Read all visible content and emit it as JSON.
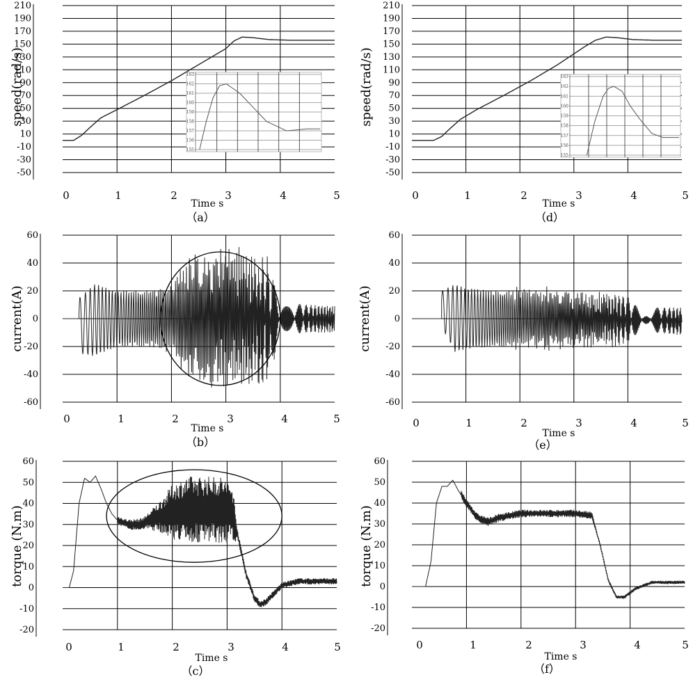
{
  "chart_data": [
    {
      "id": "a",
      "type": "line",
      "caption": "（a）",
      "ylabel": "speed(rad/s)",
      "xlabel": "Time s",
      "xlim": [
        0,
        5
      ],
      "ylim": [
        -50,
        210
      ],
      "yticks": [
        -50,
        -30,
        -10,
        10,
        30,
        50,
        70,
        90,
        110,
        130,
        150,
        170,
        190,
        210
      ],
      "xticks": [
        0,
        1,
        2,
        3,
        4,
        5
      ],
      "grid": true,
      "series": [
        {
          "x": [
            0,
            0.2,
            0.35,
            0.5,
            0.7,
            1.0,
            1.5,
            2.0,
            2.5,
            3.0,
            3.15,
            3.3,
            3.5,
            3.8,
            4.2,
            5.0
          ],
          "values": [
            0,
            0,
            8,
            20,
            35,
            48,
            70,
            93,
            118,
            143,
            155,
            161,
            160,
            157,
            156,
            156
          ]
        }
      ],
      "inset": {
        "ylim": [
          155,
          163
        ],
        "yticks": [
          155,
          156,
          157,
          158,
          159,
          160,
          161,
          162,
          163
        ],
        "xlim": [
          2.95,
          4.8
        ],
        "series": [
          {
            "x": [
              3.0,
              3.1,
              3.2,
              3.3,
              3.4,
              3.6,
              3.8,
              4.0,
              4.3,
              4.6,
              4.8
            ],
            "values": [
              155,
              158,
              160.5,
              161.8,
              162,
              161,
              159.5,
              158,
              157,
              157.2,
              157.2
            ]
          }
        ]
      }
    },
    {
      "id": "d",
      "type": "line",
      "caption": "（d）",
      "ylabel": "speed(rad/s)",
      "xlabel": "Time s",
      "xlim": [
        0,
        5
      ],
      "ylim": [
        -50,
        210
      ],
      "yticks": [
        -50,
        -30,
        -10,
        10,
        30,
        50,
        70,
        90,
        110,
        130,
        150,
        170,
        190,
        210
      ],
      "xticks": [
        0,
        1,
        2,
        3,
        4,
        5
      ],
      "grid": true,
      "series": [
        {
          "x": [
            0,
            0.4,
            0.55,
            0.7,
            0.9,
            1.2,
            1.7,
            2.2,
            2.7,
            3.2,
            3.4,
            3.6,
            3.8,
            4.1,
            4.5,
            5.0
          ],
          "values": [
            0,
            0,
            6,
            18,
            33,
            48,
            70,
            93,
            118,
            146,
            156,
            161,
            160,
            157,
            156,
            156
          ]
        }
      ],
      "inset": {
        "ylim": [
          155,
          163
        ],
        "yticks": [
          155,
          156,
          157,
          158,
          159,
          160,
          161,
          162,
          163
        ],
        "xlim": [
          3.0,
          5.0
        ],
        "series": [
          {
            "x": [
              3.3,
              3.45,
              3.6,
              3.7,
              3.8,
              3.95,
              4.1,
              4.3,
              4.5,
              4.7,
              5.0
            ],
            "values": [
              155,
              158.5,
              161,
              161.8,
              162,
              161.5,
              160,
              158.5,
              157.2,
              156.8,
              156.8
            ]
          }
        ]
      }
    },
    {
      "id": "b",
      "type": "line",
      "caption": "（b）",
      "ylabel": "current(A)",
      "xlabel": "Time s",
      "xlim": [
        0,
        5
      ],
      "ylim": [
        -60,
        60
      ],
      "yticks": [
        -60,
        -40,
        -20,
        0,
        20,
        40,
        60
      ],
      "xticks": [
        0,
        1,
        2,
        3,
        4,
        5
      ],
      "grid": true,
      "envelope": {
        "x": [
          0.3,
          0.6,
          1.0,
          1.5,
          2.0,
          2.3,
          2.7,
          3.0,
          3.5,
          3.8,
          4.0,
          4.5,
          5.0
        ],
        "upper": [
          15,
          25,
          20,
          20,
          22,
          40,
          45,
          45,
          44,
          40,
          12,
          10,
          9
        ],
        "lower": [
          -25,
          -27,
          -20,
          -20,
          -22,
          -40,
          -43,
          -42,
          -44,
          -42,
          -12,
          -10,
          -10
        ]
      },
      "ellipse": {
        "cx": 2.9,
        "cy": 0,
        "rx": 1.1,
        "ry": 48
      }
    },
    {
      "id": "e",
      "type": "line",
      "caption": "（e）",
      "ylabel": "current(A)",
      "xlabel": "Time s",
      "xlim": [
        0,
        5
      ],
      "ylim": [
        -60,
        60
      ],
      "yticks": [
        -60,
        -40,
        -20,
        0,
        20,
        40,
        60
      ],
      "xticks": [
        0,
        1,
        2,
        3,
        4,
        5
      ],
      "grid": true,
      "envelope": {
        "x": [
          0.55,
          0.8,
          1.0,
          1.5,
          2.0,
          2.5,
          3.0,
          3.5,
          4.0,
          4.1,
          4.5,
          5.0
        ],
        "upper": [
          20,
          25,
          22,
          20,
          20,
          20,
          18,
          17,
          16,
          10,
          8,
          8
        ],
        "lower": [
          -6,
          -24,
          -22,
          -20,
          -20,
          -20,
          -18,
          -18,
          -18,
          -12,
          -10,
          -12
        ]
      }
    },
    {
      "id": "c",
      "type": "line",
      "caption": "（c）",
      "ylabel": "torque (N.m)",
      "xlabel": "Time s",
      "xlim": [
        0,
        5
      ],
      "ylim": [
        -20,
        60
      ],
      "yticks": [
        -20,
        -10,
        0,
        10,
        20,
        30,
        40,
        50,
        60
      ],
      "xticks": [
        0,
        1,
        2,
        3,
        4,
        5
      ],
      "grid": true,
      "series": [
        {
          "x": [
            0,
            0.12,
            0.2,
            0.3,
            0.4,
            0.5,
            0.6,
            0.7,
            0.8,
            0.9,
            1.0,
            1.2,
            1.4,
            1.6,
            1.8,
            2.0,
            2.3,
            2.6,
            2.9,
            3.1,
            3.2,
            3.35,
            3.5,
            3.6,
            3.7,
            3.85,
            4.0,
            4.3,
            4.6,
            5.0
          ],
          "values": [
            0,
            0,
            8,
            40,
            52,
            50,
            53,
            47,
            40,
            35,
            32,
            30,
            30,
            32,
            34,
            36,
            37,
            37,
            37,
            35,
            24,
            6,
            -5,
            -8,
            -7,
            -3,
            1,
            3,
            3,
            3
          ]
        }
      ],
      "noise": {
        "x": [
          1.0,
          1.5,
          1.8,
          2.0,
          2.3,
          2.6,
          2.9,
          3.1,
          3.2,
          4.0,
          5.0
        ],
        "amp": [
          2,
          3,
          8,
          13,
          16,
          16,
          16,
          14,
          2,
          1.5,
          1.5
        ]
      },
      "ellipse": {
        "cx": 2.4,
        "cy": 34,
        "rx": 1.6,
        "ry": 22
      }
    },
    {
      "id": "f",
      "type": "line",
      "caption": "（f）",
      "ylabel": "torque (N.m)",
      "xlabel": "Time s",
      "xlim": [
        0,
        5
      ],
      "ylim": [
        -20,
        60
      ],
      "yticks": [
        -20,
        -10,
        0,
        10,
        20,
        30,
        40,
        50,
        60
      ],
      "xticks": [
        0,
        1,
        2,
        3,
        4,
        5
      ],
      "grid": true,
      "series": [
        {
          "x": [
            0,
            0.25,
            0.35,
            0.45,
            0.55,
            0.65,
            0.75,
            0.85,
            1.0,
            1.2,
            1.4,
            1.6,
            1.8,
            2.0,
            2.5,
            3.0,
            3.3,
            3.45,
            3.6,
            3.75,
            3.9,
            4.1,
            4.4,
            4.7,
            5.0
          ],
          "values": [
            0,
            0,
            12,
            40,
            48,
            48,
            51,
            46,
            40,
            33,
            31,
            33,
            34,
            35,
            35,
            35,
            34,
            20,
            3,
            -5,
            -5,
            -1,
            2,
            2,
            2
          ]
        }
      ],
      "noise": {
        "x": [
          0.9,
          1.5,
          2.0,
          3.3,
          3.4,
          5.0
        ],
        "amp": [
          2,
          2,
          1.8,
          1.8,
          0.8,
          0.8
        ]
      }
    }
  ]
}
